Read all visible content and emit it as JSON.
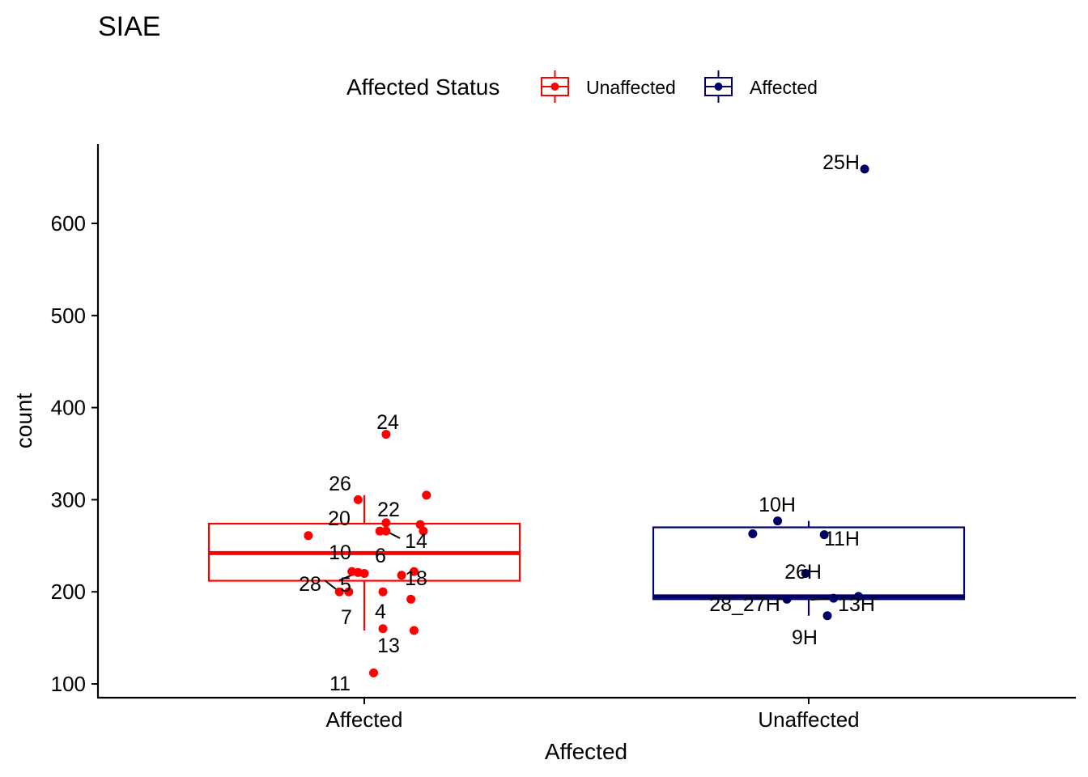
{
  "chart_data": {
    "type": "box",
    "title": "SIAE",
    "xlabel": "Affected",
    "ylabel": "count",
    "ylim": [
      85,
      685
    ],
    "yticks": [
      100,
      200,
      300,
      400,
      500,
      600
    ],
    "categories": [
      "Affected",
      "Unaffected"
    ],
    "legend": {
      "title": "Affected Status",
      "position": "top",
      "entries": [
        {
          "label": "Unaffected",
          "color": "#FF0000"
        },
        {
          "label": "Affected",
          "color": "#000066"
        }
      ]
    },
    "boxes": [
      {
        "category": "Affected",
        "color": "#FF0000",
        "q1": 212,
        "median": 242,
        "q3": 274,
        "whisker_low": 158,
        "whisker_high": 305
      },
      {
        "category": "Unaffected",
        "color": "#000066",
        "q1": 192,
        "median": 195,
        "q3": 270,
        "whisker_low": 174,
        "whisker_high": 277
      }
    ],
    "series": [
      {
        "category": "Affected",
        "color": "#FF0000",
        "points": [
          {
            "x": 0.2,
            "y": 305,
            "label": ""
          },
          {
            "x": -0.02,
            "y": 300,
            "label": "26"
          },
          {
            "x": 0.07,
            "y": 275,
            "label": "22"
          },
          {
            "x": 0.05,
            "y": 266,
            "label": "20"
          },
          {
            "x": 0.18,
            "y": 273,
            "label": ""
          },
          {
            "x": 0.19,
            "y": 266,
            "label": ""
          },
          {
            "x": -0.18,
            "y": 261,
            "label": ""
          },
          {
            "x": 0.07,
            "y": 266,
            "label": "14"
          },
          {
            "x": -0.04,
            "y": 222,
            "label": "10"
          },
          {
            "x": 0.0,
            "y": 220,
            "label": "6"
          },
          {
            "x": 0.12,
            "y": 218,
            "label": "18"
          },
          {
            "x": 0.16,
            "y": 222,
            "label": ""
          },
          {
            "x": -0.08,
            "y": 200,
            "label": "28"
          },
          {
            "x": -0.02,
            "y": 221,
            "label": "5"
          },
          {
            "x": 0.15,
            "y": 192,
            "label": ""
          },
          {
            "x": -0.05,
            "y": 200,
            "label": "7"
          },
          {
            "x": 0.06,
            "y": 200,
            "label": "4"
          },
          {
            "x": 0.16,
            "y": 158,
            "label": ""
          },
          {
            "x": 0.07,
            "y": 371,
            "label": "24"
          },
          {
            "x": 0.03,
            "y": 112,
            "label": "11"
          },
          {
            "x": 0.06,
            "y": 160,
            "label": "13"
          }
        ]
      },
      {
        "category": "Unaffected",
        "color": "#000066",
        "points": [
          {
            "x": 0.18,
            "y": 659,
            "label": "25H"
          },
          {
            "x": -0.1,
            "y": 277,
            "label": "10H"
          },
          {
            "x": -0.18,
            "y": 263,
            "label": ""
          },
          {
            "x": 0.05,
            "y": 262,
            "label": "11H"
          },
          {
            "x": -0.01,
            "y": 220,
            "label": "26H"
          },
          {
            "x": -0.07,
            "y": 192,
            "label": "28_27H"
          },
          {
            "x": 0.08,
            "y": 193,
            "label": "13H"
          },
          {
            "x": 0.16,
            "y": 195,
            "label": ""
          },
          {
            "x": 0.06,
            "y": 174,
            "label": "9H"
          }
        ]
      }
    ]
  }
}
